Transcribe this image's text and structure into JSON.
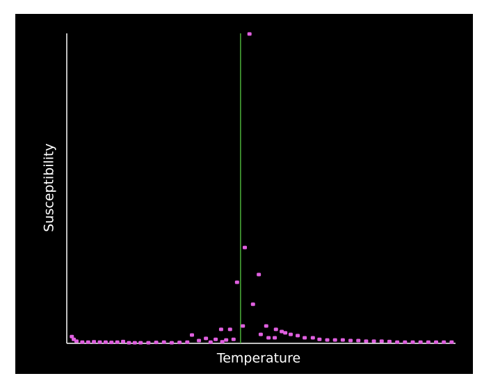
{
  "chart_data": {
    "type": "scatter",
    "x_label": "Temperature",
    "y_label": "Susceptibility",
    "xlim": [
      0,
      100
    ],
    "ylim": [
      0,
      100
    ],
    "color": "#e060e0",
    "vline": 44.7,
    "vline_color": "#4caf3a",
    "x": [
      1.3,
      1.8,
      2.5,
      4,
      5.5,
      7,
      8.5,
      10,
      11.5,
      13,
      14.5,
      16,
      17.5,
      19,
      21,
      23,
      25,
      27,
      29,
      31,
      32.2,
      34,
      35.8,
      37,
      38.3,
      39.7,
      40,
      41.0,
      42.0,
      42.9,
      43.8,
      45.3,
      45.8,
      47.0,
      47.9,
      49.4,
      49.9,
      51.3,
      51.9,
      53.5,
      53.8,
      55.3,
      56.2,
      57.6,
      59.4,
      61.2,
      63.3,
      65,
      67,
      69,
      71,
      73,
      75,
      77,
      79,
      81,
      83,
      85,
      87,
      89,
      91,
      93,
      95,
      97,
      99
    ],
    "values": [
      2.2,
      1.3,
      0.7,
      0.4,
      0.4,
      0.5,
      0.4,
      0.4,
      0.3,
      0.4,
      0.6,
      0.2,
      0.2,
      0.2,
      0.2,
      0.3,
      0.4,
      0.2,
      0.3,
      0.4,
      2.7,
      0.9,
      1.6,
      0.4,
      1.3,
      4.5,
      0.5,
      1.1,
      4.5,
      1.3,
      19.7,
      5.6,
      30.9,
      99.8,
      12.6,
      22.2,
      2.9,
      5.6,
      1.8,
      1.8,
      4.5,
      3.8,
      3.4,
      2.9,
      2.5,
      1.8,
      1.8,
      1.3,
      1.1,
      1.1,
      1.1,
      0.9,
      0.9,
      0.7,
      0.7,
      0.7,
      0.6,
      0.4,
      0.4,
      0.4,
      0.4,
      0.4,
      0.4,
      0.4,
      0.4
    ]
  }
}
